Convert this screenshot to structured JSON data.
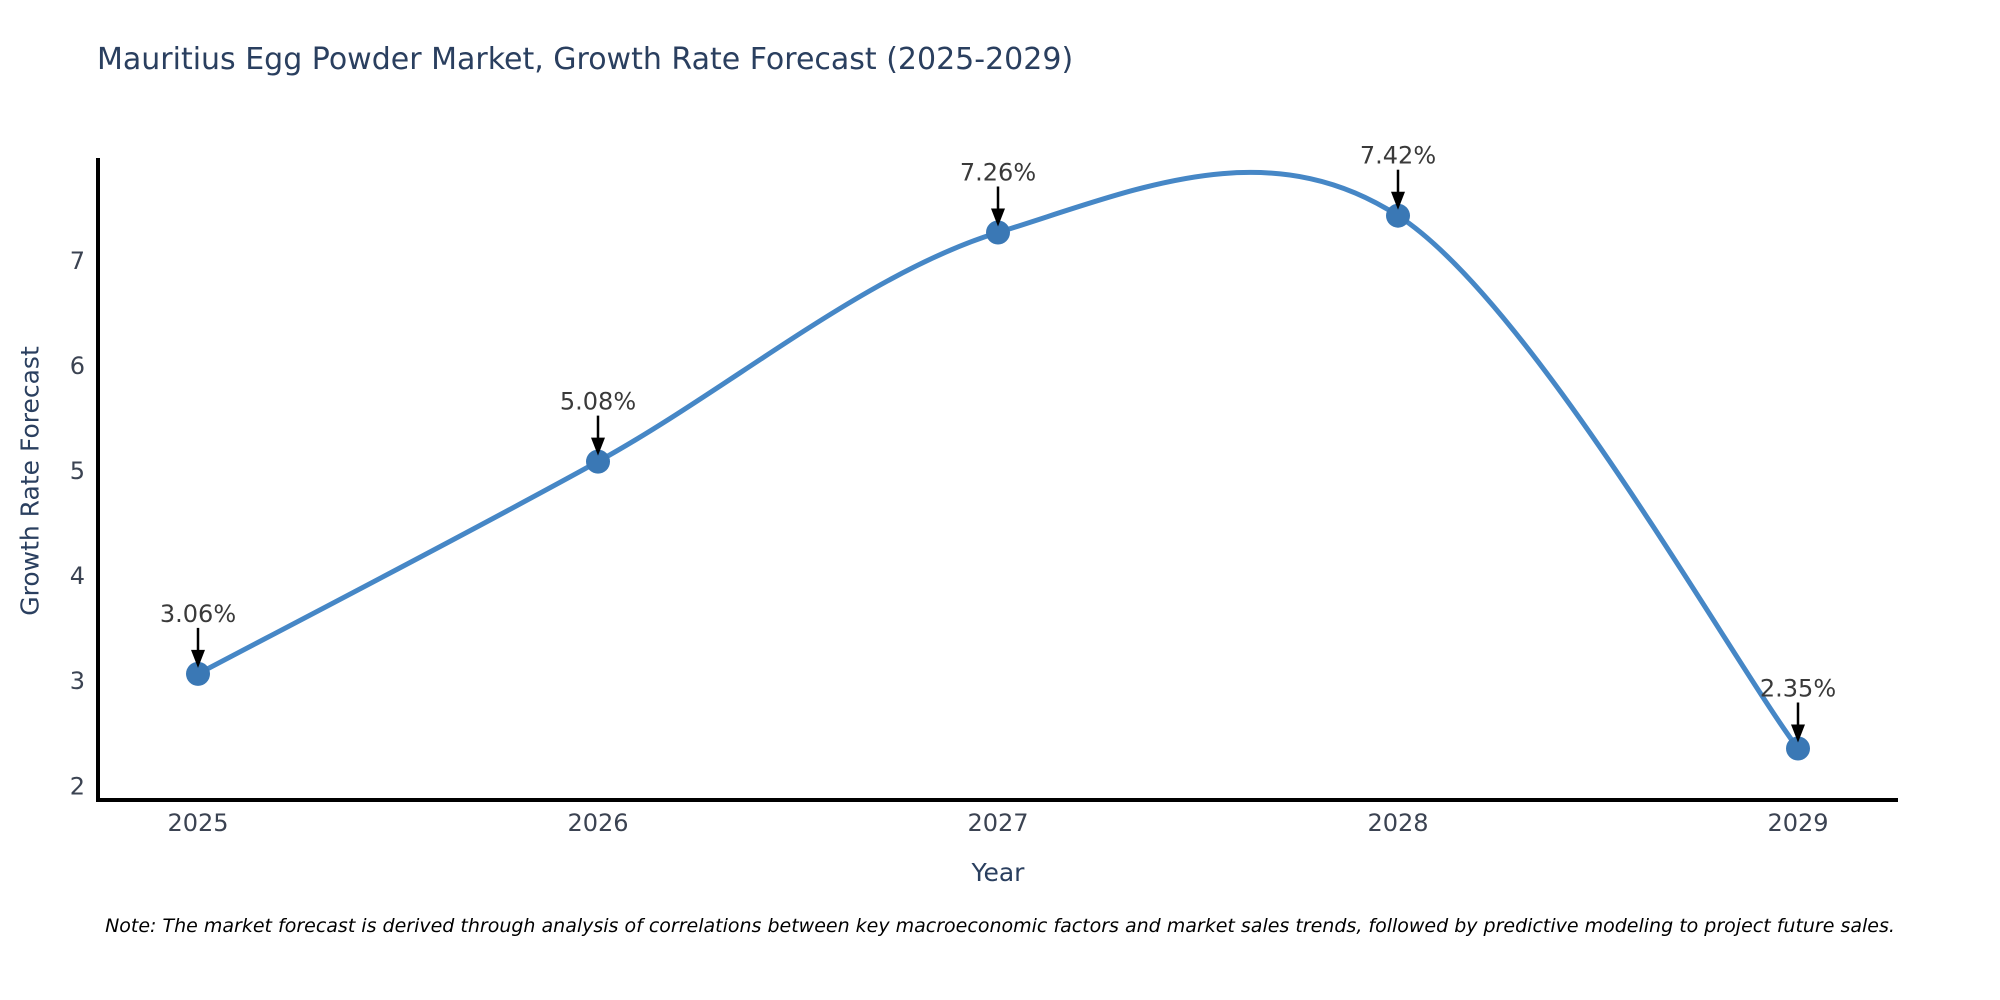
{
  "note": "Note: The market forecast is derived through analysis of correlations between key macroeconomic factors and market sales trends, followed by predictive modeling to project future sales.",
  "chart_data": {
    "type": "line",
    "title": "Mauritius Egg Powder Market, Growth Rate Forecast (2025-2029)",
    "xlabel": "Year",
    "ylabel": "Growth Rate Forecast",
    "x": [
      2025,
      2026,
      2027,
      2028,
      2029
    ],
    "values": [
      3.06,
      5.08,
      7.26,
      7.42,
      2.35
    ],
    "point_labels": [
      "3.06%",
      "5.08%",
      "7.26%",
      "7.42%",
      "2.35%"
    ],
    "xticks": [
      "2025",
      "2026",
      "2027",
      "2028",
      "2029"
    ],
    "yticks": [
      2,
      3,
      4,
      5,
      6,
      7
    ],
    "xlim": [
      2024.75,
      2029.25
    ],
    "ylim": [
      1.86,
      7.95
    ],
    "grid": false,
    "smooth": true,
    "legend": "none",
    "line_color": "#4687c6",
    "marker_color": "#3a78b5",
    "annotation_color": "#3a3a3a",
    "arrow_color": "#000000",
    "axis_color": "#000000",
    "label_color": "#2a3f5f",
    "tick_color": "#3b4352"
  }
}
